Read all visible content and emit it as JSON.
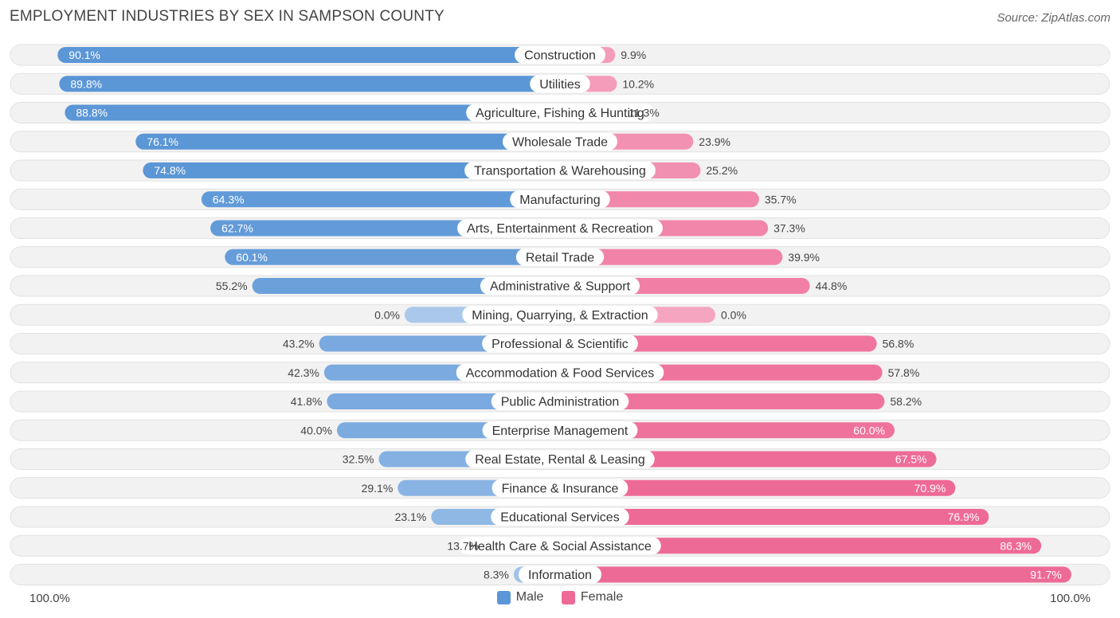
{
  "header": {
    "title": "EMPLOYMENT INDUSTRIES BY SEX IN SAMPSON COUNTY",
    "source": "Source: ZipAtlas.com"
  },
  "colors": {
    "male_strong": "#5b96d6",
    "male_light": "#a9c8ec",
    "female_strong": "#ee6a96",
    "female_light": "#f5a5c0",
    "row_bg": "#f2f2f2",
    "row_border": "#e1e1e1"
  },
  "chart_data": {
    "type": "bar",
    "orientation": "horizontal-diverging",
    "title": "EMPLOYMENT INDUSTRIES BY SEX IN SAMPSON COUNTY",
    "categories": [
      "Construction",
      "Utilities",
      "Agriculture, Fishing & Hunting",
      "Wholesale Trade",
      "Transportation & Warehousing",
      "Manufacturing",
      "Arts, Entertainment & Recreation",
      "Retail Trade",
      "Administrative & Support",
      "Mining, Quarrying, & Extraction",
      "Professional & Scientific",
      "Accommodation & Food Services",
      "Public Administration",
      "Enterprise Management",
      "Real Estate, Rental & Leasing",
      "Finance & Insurance",
      "Educational Services",
      "Health Care & Social Assistance",
      "Information"
    ],
    "series": [
      {
        "name": "Male",
        "values": [
          90.1,
          89.8,
          88.8,
          76.1,
          74.8,
          64.3,
          62.7,
          60.1,
          55.2,
          0.0,
          43.2,
          42.3,
          41.8,
          40.0,
          32.5,
          29.1,
          23.1,
          13.7,
          8.3
        ],
        "labels": [
          "90.1%",
          "89.8%",
          "88.8%",
          "76.1%",
          "74.8%",
          "64.3%",
          "62.7%",
          "60.1%",
          "55.2%",
          "0.0%",
          "43.2%",
          "42.3%",
          "41.8%",
          "40.0%",
          "32.5%",
          "29.1%",
          "23.1%",
          "13.7%",
          "8.3%"
        ]
      },
      {
        "name": "Female",
        "values": [
          9.9,
          10.2,
          11.3,
          23.9,
          25.2,
          35.7,
          37.3,
          39.9,
          44.8,
          0.0,
          56.8,
          57.8,
          58.2,
          60.0,
          67.5,
          70.9,
          76.9,
          86.3,
          91.7
        ],
        "labels": [
          "9.9%",
          "10.2%",
          "11.3%",
          "23.9%",
          "25.2%",
          "35.7%",
          "37.3%",
          "39.9%",
          "44.8%",
          "0.0%",
          "56.8%",
          "57.8%",
          "58.2%",
          "60.0%",
          "67.5%",
          "70.9%",
          "76.9%",
          "86.3%",
          "91.7%"
        ]
      }
    ],
    "xlim": [
      -100,
      100
    ],
    "axis_left_label": "100.0%",
    "axis_right_label": "100.0%",
    "legend": [
      "Male",
      "Female"
    ],
    "legend_position": "bottom-center"
  }
}
